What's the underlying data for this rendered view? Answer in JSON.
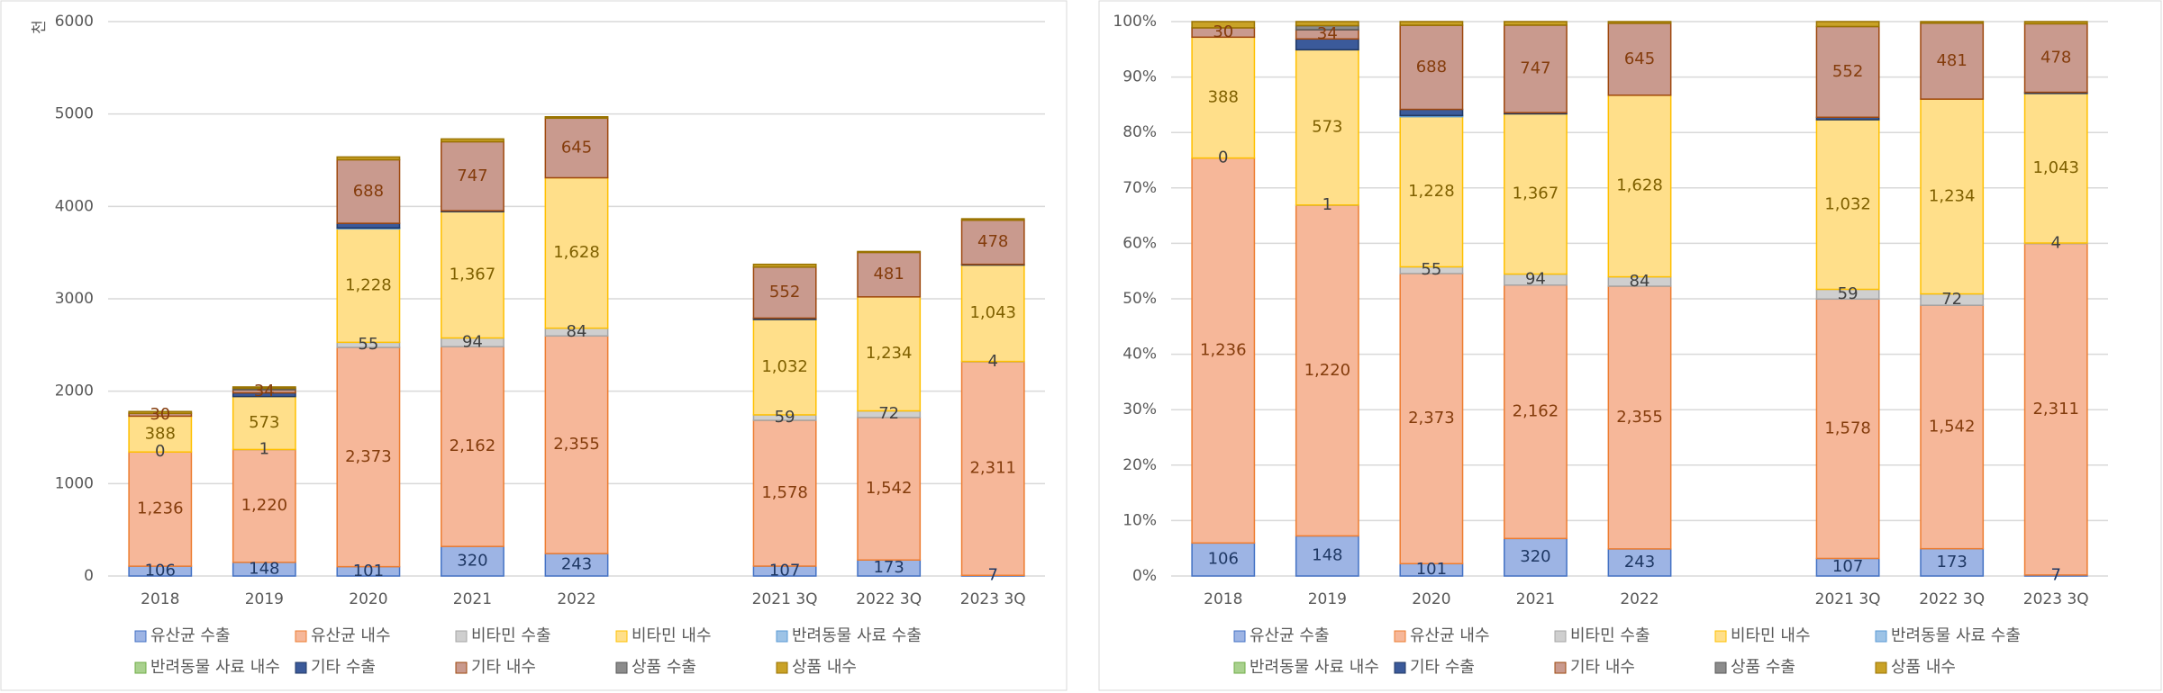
{
  "chart_data": [
    {
      "type": "bar",
      "stacking": "normal",
      "y_label": "천",
      "categories": [
        "2018",
        "2019",
        "2020",
        "2021",
        "2022",
        null,
        "2021 3Q",
        "2022 3Q",
        "2023 3Q"
      ],
      "ylim": [
        0,
        6000
      ],
      "yticks": [
        0,
        1000,
        2000,
        3000,
        4000,
        5000,
        6000
      ],
      "grid": true,
      "series": [
        {
          "name": "유산균 수출",
          "color": "#9db4e4",
          "border": "#4472c4",
          "label_color": "#1f3864",
          "values": [
            106,
            148,
            101,
            320,
            243,
            null,
            107,
            173,
            7
          ],
          "value_labels": [
            "106",
            "148",
            "101",
            "320",
            "243",
            null,
            "107",
            "173",
            "7"
          ]
        },
        {
          "name": "유산균 내수",
          "color": "#f6b799",
          "border": "#ed7d31",
          "label_color": "#843c0c",
          "values": [
            1236,
            1220,
            2373,
            2162,
            2355,
            null,
            1578,
            1542,
            2311
          ],
          "value_labels": [
            "1,236",
            "1,220",
            "2,373",
            "2,162",
            "2,355",
            null,
            "1,578",
            "1,542",
            "2,311"
          ]
        },
        {
          "name": "비타민 수출",
          "color": "#cfcfcf",
          "border": "#a5a5a5",
          "label_color": "#404040",
          "values": [
            0,
            1,
            55,
            94,
            84,
            null,
            59,
            72,
            4
          ],
          "value_labels": [
            "0",
            "1",
            "55",
            "94",
            "84",
            null,
            "59",
            "72",
            "4"
          ]
        },
        {
          "name": "비타민 내수",
          "color": "#ffdf8a",
          "border": "#ffc000",
          "label_color": "#7f6000",
          "values": [
            388,
            573,
            1228,
            1367,
            1628,
            null,
            1032,
            1234,
            1043
          ],
          "value_labels": [
            "388",
            "573",
            "1,228",
            "1,367",
            "1,628",
            null,
            "1,032",
            "1,234",
            "1,043"
          ]
        },
        {
          "name": "반려동물 사료 수출",
          "color": "#9dc3e6",
          "border": "#5b9bd5",
          "values": [
            0,
            0,
            10,
            0,
            0,
            null,
            0,
            0,
            0
          ]
        },
        {
          "name": "반려동물 사료 내수",
          "color": "#a9d18e",
          "border": "#70ad47",
          "values": [
            0,
            0,
            0,
            0,
            0,
            null,
            0,
            0,
            0
          ]
        },
        {
          "name": "기타 수출",
          "color": "#3b5a9a",
          "border": "#203864",
          "values": [
            0,
            40,
            50,
            10,
            0,
            null,
            15,
            0,
            8
          ]
        },
        {
          "name": "기타 내수",
          "color": "#c99a8e",
          "border": "#9e480e",
          "label_color": "#843c0c",
          "values": [
            30,
            34,
            688,
            747,
            645,
            null,
            552,
            481,
            478
          ],
          "value_labels": [
            "30",
            "34",
            "688",
            "747",
            "645",
            null,
            "552",
            "481",
            "478"
          ]
        },
        {
          "name": "상품 수출",
          "color": "#8c8c8c",
          "border": "#595959",
          "values": [
            0,
            15,
            0,
            0,
            0,
            null,
            0,
            0,
            0
          ]
        },
        {
          "name": "상품 내수",
          "color": "#c9a227",
          "border": "#997300",
          "values": [
            20,
            15,
            30,
            30,
            15,
            null,
            30,
            10,
            15
          ]
        }
      ]
    },
    {
      "type": "bar",
      "stacking": "percent",
      "categories": [
        "2018",
        "2019",
        "2020",
        "2021",
        "2022",
        null,
        "2021 3Q",
        "2022 3Q",
        "2023 3Q"
      ],
      "ylim": [
        0,
        100
      ],
      "yticks": [
        {
          "value": 0,
          "label": "0%"
        },
        {
          "value": 10,
          "label": "10%"
        },
        {
          "value": 20,
          "label": "20%"
        },
        {
          "value": 30,
          "label": "30%"
        },
        {
          "value": 40,
          "label": "40%"
        },
        {
          "value": 50,
          "label": "50%"
        },
        {
          "value": 60,
          "label": "60%"
        },
        {
          "value": 70,
          "label": "70%"
        },
        {
          "value": 80,
          "label": "80%"
        },
        {
          "value": 90,
          "label": "90%"
        },
        {
          "value": 100,
          "label": "100%"
        }
      ],
      "grid": true,
      "series": [
        {
          "name": "유산균 수출",
          "color": "#9db4e4",
          "border": "#4472c4",
          "label_color": "#1f3864",
          "values": [
            106,
            148,
            101,
            320,
            243,
            null,
            107,
            173,
            7
          ],
          "value_labels": [
            "106",
            "148",
            "101",
            "320",
            "243",
            null,
            "107",
            "173",
            "7"
          ]
        },
        {
          "name": "유산균 내수",
          "color": "#f6b799",
          "border": "#ed7d31",
          "label_color": "#843c0c",
          "values": [
            1236,
            1220,
            2373,
            2162,
            2355,
            null,
            1578,
            1542,
            2311
          ],
          "value_labels": [
            "1,236",
            "1,220",
            "2,373",
            "2,162",
            "2,355",
            null,
            "1,578",
            "1,542",
            "2,311"
          ]
        },
        {
          "name": "비타민 수출",
          "color": "#cfcfcf",
          "border": "#a5a5a5",
          "label_color": "#404040",
          "values": [
            0,
            1,
            55,
            94,
            84,
            null,
            59,
            72,
            4
          ],
          "value_labels": [
            "0",
            "1",
            "55",
            "94",
            "84",
            null,
            "59",
            "72",
            "4"
          ]
        },
        {
          "name": "비타민 내수",
          "color": "#ffdf8a",
          "border": "#ffc000",
          "label_color": "#7f6000",
          "values": [
            388,
            573,
            1228,
            1367,
            1628,
            null,
            1032,
            1234,
            1043
          ],
          "value_labels": [
            "388",
            "573",
            "1,228",
            "1,367",
            "1,628",
            null,
            "1,032",
            "1,234",
            "1,043"
          ]
        },
        {
          "name": "반려동물 사료 수출",
          "color": "#9dc3e6",
          "border": "#5b9bd5",
          "values": [
            0,
            0,
            10,
            0,
            0,
            null,
            0,
            0,
            0
          ]
        },
        {
          "name": "반려동물 사료 내수",
          "color": "#a9d18e",
          "border": "#70ad47",
          "values": [
            0,
            0,
            0,
            0,
            0,
            null,
            0,
            0,
            0
          ]
        },
        {
          "name": "기타 수출",
          "color": "#3b5a9a",
          "border": "#203864",
          "values": [
            0,
            40,
            50,
            10,
            0,
            null,
            15,
            0,
            8
          ]
        },
        {
          "name": "기타 내수",
          "color": "#c99a8e",
          "border": "#9e480e",
          "label_color": "#843c0c",
          "values": [
            30,
            34,
            688,
            747,
            645,
            null,
            552,
            481,
            478
          ],
          "value_labels": [
            "30",
            "34",
            "688",
            "747",
            "645",
            null,
            "552",
            "481",
            "478"
          ]
        },
        {
          "name": "상품 수출",
          "color": "#8c8c8c",
          "border": "#595959",
          "values": [
            0,
            15,
            0,
            0,
            0,
            null,
            0,
            0,
            0
          ]
        },
        {
          "name": "상품 내수",
          "color": "#c9a227",
          "border": "#997300",
          "values": [
            20,
            15,
            30,
            30,
            15,
            null,
            30,
            10,
            15
          ]
        }
      ]
    }
  ]
}
